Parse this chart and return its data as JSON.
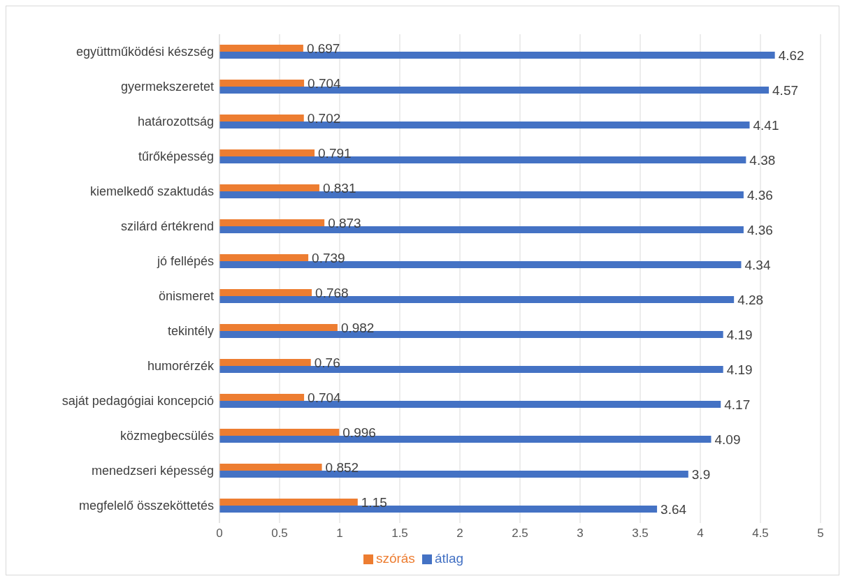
{
  "chart_data": {
    "type": "bar",
    "orientation": "horizontal",
    "categories": [
      "együttműködési készség",
      "gyermekszeretet",
      "határozottság",
      "tűrőképesség",
      "kiemelkedő szaktudás",
      "szilárd értékrend",
      "jó fellépés",
      "önismeret",
      "tekintély",
      "humorérzék",
      "saját pedagógiai koncepció",
      "közmegbecsülés",
      "menedzseri képesség",
      "megfelelő összeköttetés"
    ],
    "series": [
      {
        "name": "szórás",
        "color": "#ed7d31",
        "values": [
          0.697,
          0.704,
          0.702,
          0.791,
          0.831,
          0.873,
          0.739,
          0.768,
          0.982,
          0.76,
          0.704,
          0.996,
          0.852,
          1.15
        ]
      },
      {
        "name": "átlag",
        "color": "#4472c4",
        "values": [
          4.62,
          4.57,
          4.41,
          4.38,
          4.36,
          4.36,
          4.34,
          4.28,
          4.19,
          4.19,
          4.17,
          4.09,
          3.9,
          3.64
        ]
      }
    ],
    "xlim": [
      0,
      5
    ],
    "xticks": [
      0,
      0.5,
      1,
      1.5,
      2,
      2.5,
      3,
      3.5,
      4,
      4.5,
      5
    ],
    "grid": "x",
    "legend": "bottom",
    "data_labels": true
  }
}
